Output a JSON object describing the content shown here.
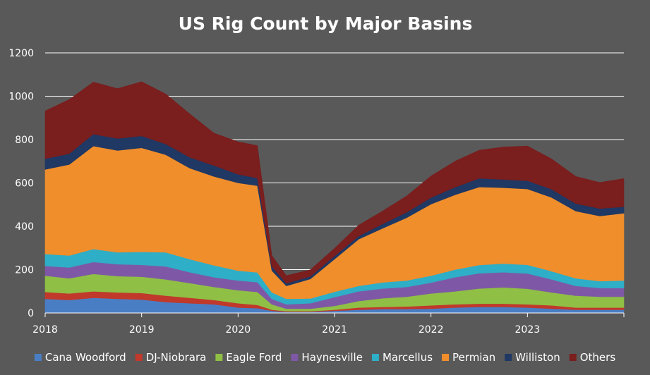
{
  "chart_data": {
    "type": "area",
    "stacked": true,
    "title": "US Rig Count by Major Basins",
    "xlabel": "",
    "ylabel": "",
    "xlim": [
      2018.0,
      2024.0
    ],
    "ylim": [
      0,
      1200
    ],
    "x_ticks": [
      2018,
      2019,
      2020,
      2021,
      2022,
      2023
    ],
    "x_tick_labels": [
      "2018",
      "2019",
      "2020",
      "2021",
      "2022",
      "2023"
    ],
    "y_ticks": [
      0,
      200,
      400,
      600,
      800,
      1000,
      1200
    ],
    "y_tick_labels": [
      "0",
      "200",
      "400",
      "600",
      "800",
      "1000",
      "1200"
    ],
    "grid": "horizontal",
    "legend_position": "bottom",
    "x": [
      2018.0,
      2018.25,
      2018.5,
      2018.75,
      2019.0,
      2019.25,
      2019.5,
      2019.75,
      2020.0,
      2020.2,
      2020.35,
      2020.5,
      2020.75,
      2021.0,
      2021.25,
      2021.5,
      2021.75,
      2022.0,
      2022.25,
      2022.5,
      2022.75,
      2023.0,
      2023.25,
      2023.5,
      2023.75,
      2024.0
    ],
    "series": [
      {
        "name": "Cana Woodford",
        "color": "#4a7ec4",
        "values": [
          65,
          60,
          70,
          65,
          62,
          50,
          45,
          40,
          25,
          22,
          10,
          5,
          5,
          10,
          15,
          18,
          18,
          20,
          25,
          28,
          28,
          25,
          20,
          15,
          15,
          15
        ]
      },
      {
        "name": "DJ-Niobrara",
        "color": "#c0392b",
        "values": [
          32,
          30,
          30,
          30,
          30,
          30,
          25,
          20,
          20,
          15,
          5,
          3,
          3,
          5,
          10,
          10,
          12,
          15,
          15,
          15,
          15,
          15,
          15,
          10,
          10,
          10
        ]
      },
      {
        "name": "Eagle Ford",
        "color": "#8fbf45",
        "values": [
          75,
          70,
          80,
          75,
          75,
          75,
          68,
          60,
          60,
          60,
          25,
          12,
          12,
          18,
          30,
          40,
          45,
          55,
          60,
          70,
          75,
          72,
          60,
          55,
          50,
          50
        ]
      },
      {
        "name": "Haynesville",
        "color": "#7e58a6",
        "values": [
          45,
          50,
          55,
          55,
          55,
          60,
          50,
          45,
          45,
          45,
          25,
          20,
          25,
          40,
          45,
          45,
          45,
          50,
          65,
          70,
          70,
          70,
          60,
          45,
          40,
          40
        ]
      },
      {
        "name": "Marcellus",
        "color": "#2faec7",
        "values": [
          55,
          55,
          60,
          55,
          60,
          65,
          60,
          55,
          45,
          45,
          30,
          25,
          22,
          25,
          25,
          28,
          30,
          32,
          35,
          38,
          40,
          40,
          38,
          35,
          32,
          35
        ]
      },
      {
        "name": "Permian",
        "color": "#f08e2c",
        "values": [
          390,
          420,
          475,
          470,
          480,
          450,
          420,
          410,
          405,
          400,
          100,
          60,
          90,
          150,
          215,
          250,
          290,
          330,
          345,
          360,
          350,
          350,
          340,
          310,
          300,
          310
        ]
      },
      {
        "name": "Williston",
        "color": "#1f3864",
        "values": [
          50,
          50,
          55,
          55,
          55,
          50,
          50,
          50,
          40,
          35,
          20,
          12,
          12,
          15,
          15,
          20,
          25,
          30,
          35,
          40,
          38,
          38,
          38,
          35,
          35,
          30
        ]
      },
      {
        "name": "Others",
        "color": "#7a1e1e",
        "values": [
          220,
          250,
          240,
          230,
          250,
          230,
          200,
          150,
          150,
          150,
          50,
          35,
          30,
          35,
          50,
          60,
          75,
          100,
          120,
          130,
          150,
          160,
          140,
          125,
          120,
          130
        ]
      }
    ]
  }
}
